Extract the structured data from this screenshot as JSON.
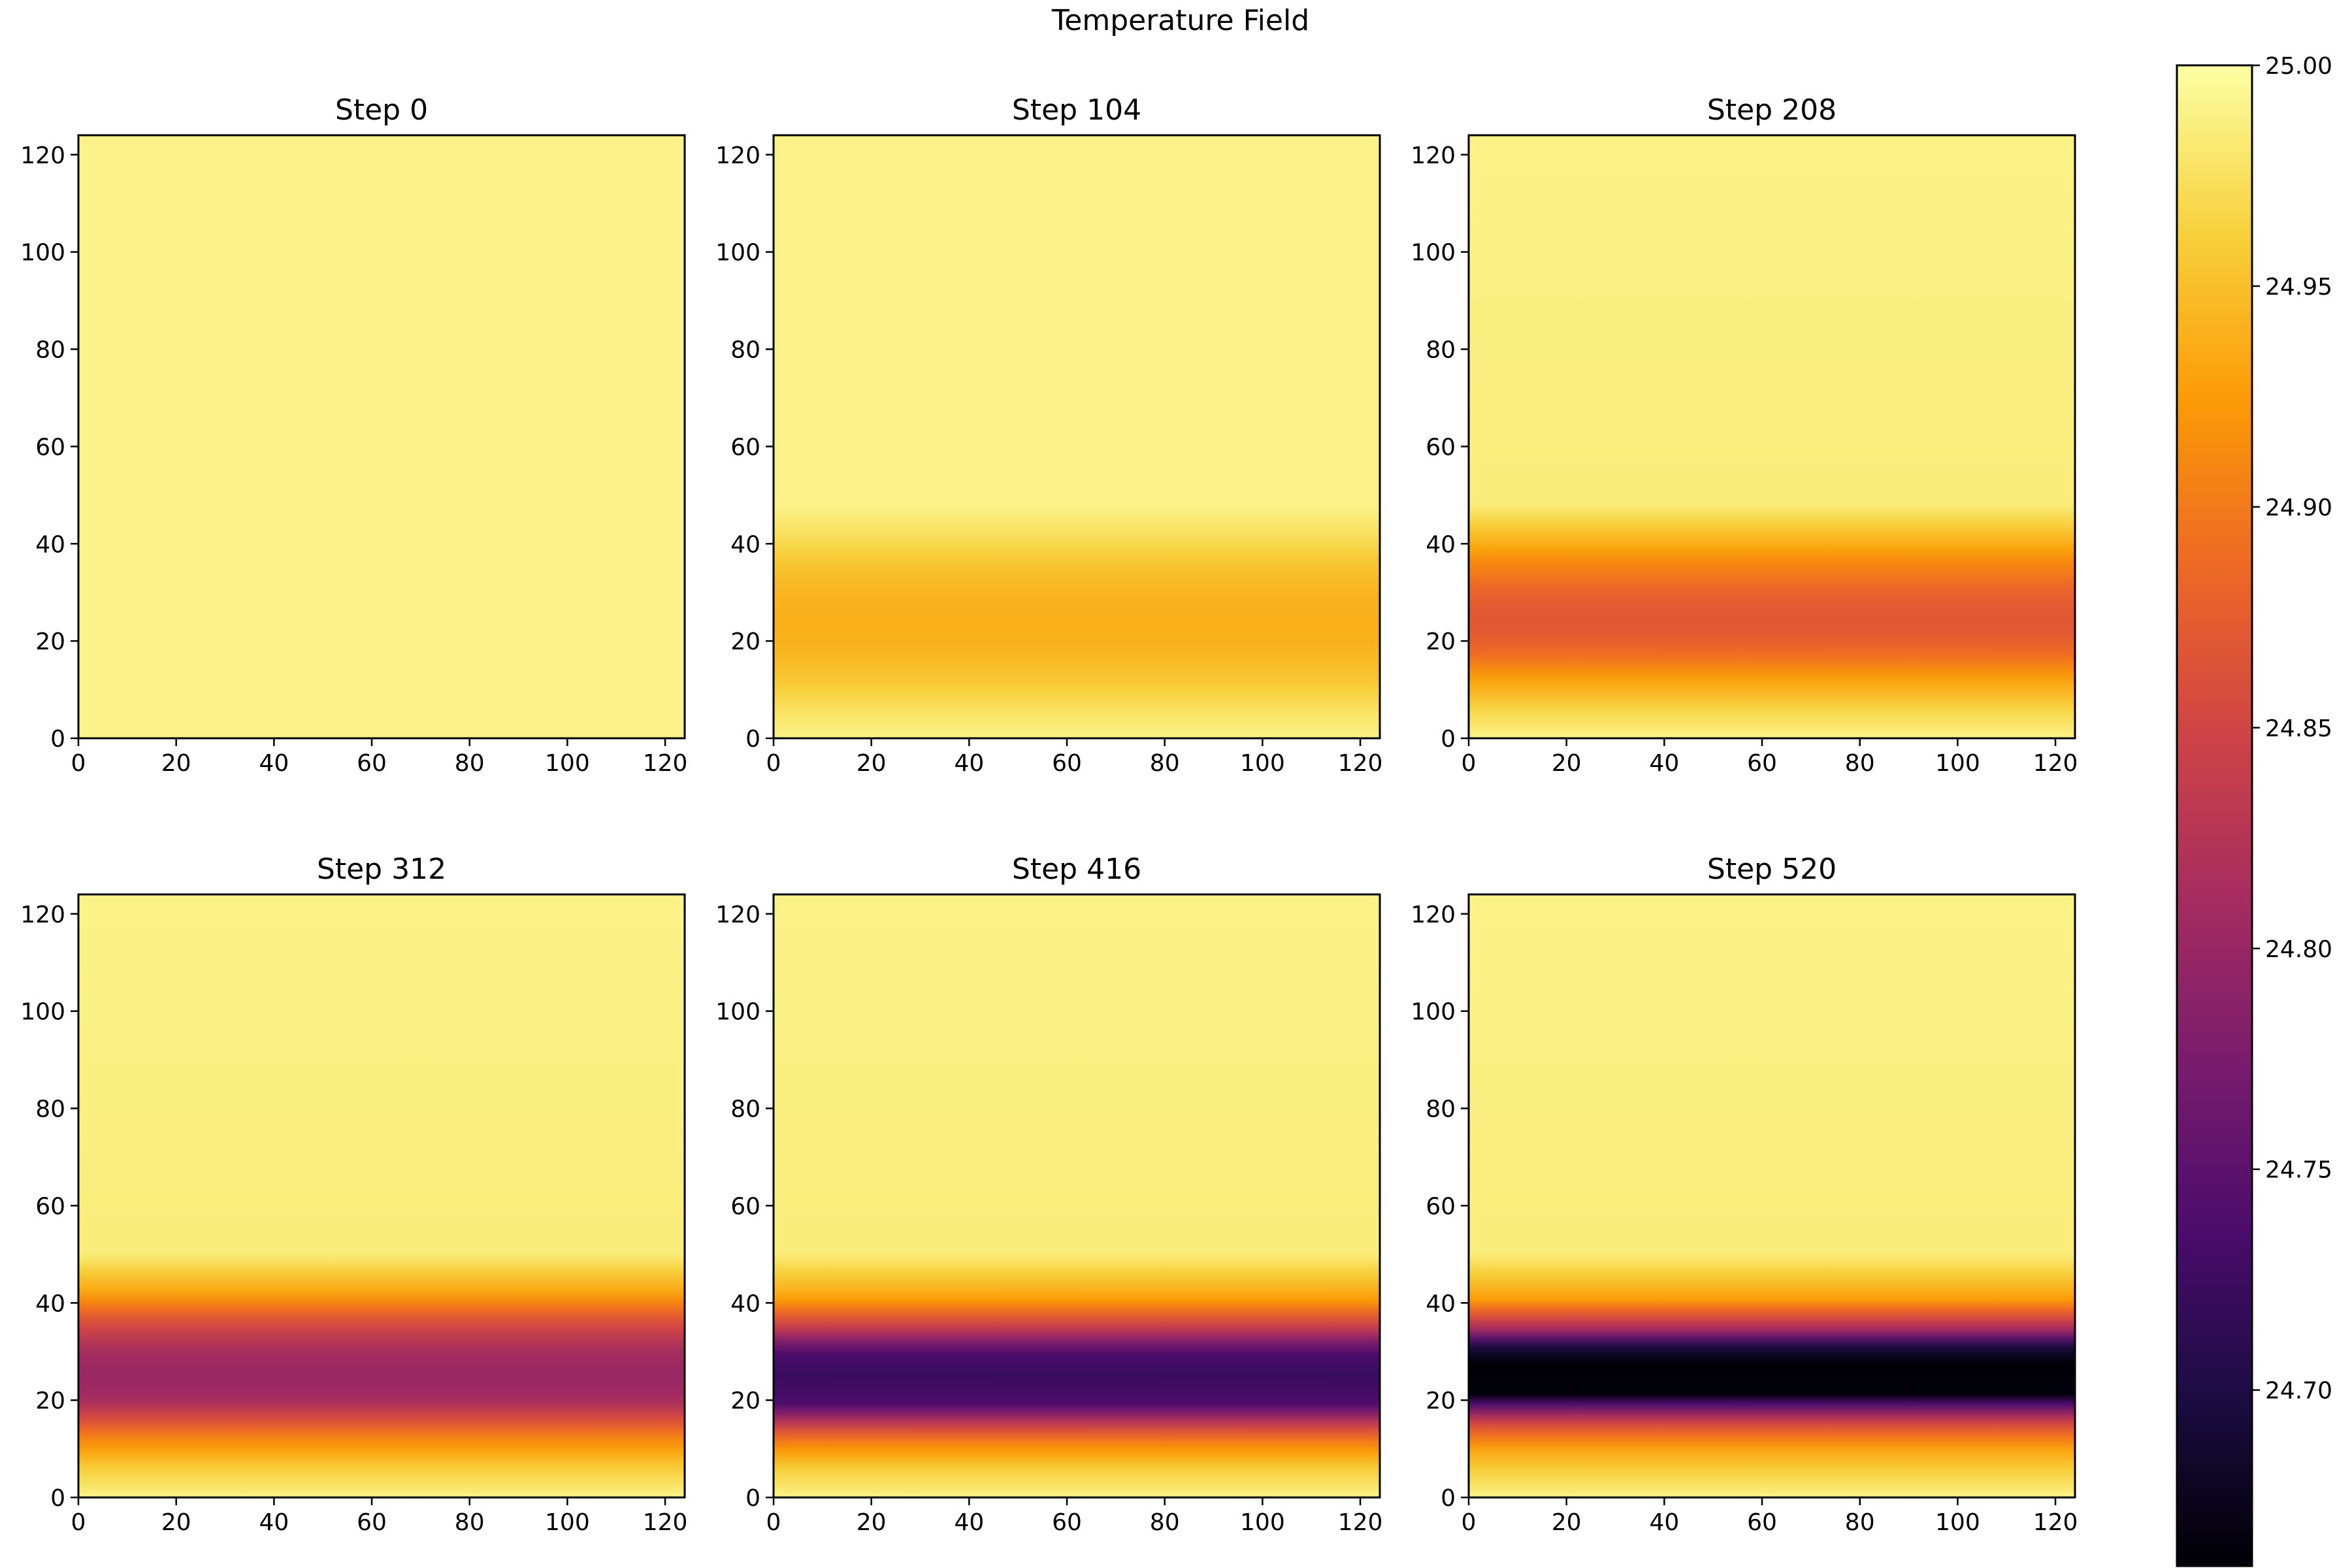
{
  "chart_data": {
    "type": "heatmap",
    "title": "Temperature Field",
    "grid": false,
    "colormap": "inferno",
    "colormap_stops": [
      "#000004",
      "#1b0c41",
      "#4a0c6b",
      "#781c6d",
      "#a52c60",
      "#cf4446",
      "#ed6925",
      "#fb9b06",
      "#f7d13d",
      "#fcffa4"
    ],
    "row_profile_note": "field varies only along y; values below are the temperature at each y (data units), constant across x",
    "colorbar": {
      "min": 24.66,
      "max": 25.0,
      "ticks": [
        24.7,
        24.75,
        24.8,
        24.85,
        24.9,
        24.95,
        25.0
      ],
      "tick_labels": [
        "24.70",
        "24.75",
        "24.80",
        "24.85",
        "24.90",
        "24.95",
        "25.00"
      ]
    },
    "panels": [
      {
        "title": "Step 0",
        "xlim": [
          0,
          124
        ],
        "ylim": [
          0,
          124
        ],
        "xticks": [
          0,
          20,
          40,
          60,
          80,
          100,
          120
        ],
        "yticks": [
          0,
          20,
          40,
          60,
          80,
          100,
          120
        ],
        "profile": {
          "y": [
            0,
            124
          ],
          "values": [
            24.99,
            24.99
          ]
        }
      },
      {
        "title": "Step 104",
        "xlim": [
          0,
          124
        ],
        "ylim": [
          0,
          124
        ],
        "xticks": [
          0,
          20,
          40,
          60,
          80,
          100,
          120
        ],
        "yticks": [
          0,
          20,
          40,
          60,
          80,
          100,
          120
        ],
        "profile": {
          "y": [
            0,
            6,
            12,
            18,
            24,
            30,
            36,
            42,
            48,
            124
          ],
          "values": [
            24.99,
            24.975,
            24.955,
            24.942,
            24.938,
            24.942,
            24.955,
            24.975,
            24.99,
            24.99
          ]
        }
      },
      {
        "title": "Step 208",
        "xlim": [
          0,
          124
        ],
        "ylim": [
          0,
          124
        ],
        "xticks": [
          0,
          20,
          40,
          60,
          80,
          100,
          120
        ],
        "yticks": [
          0,
          20,
          40,
          60,
          80,
          100,
          120
        ],
        "profile": {
          "y": [
            0,
            6,
            12,
            17,
            22,
            26,
            30,
            36,
            42,
            48,
            124
          ],
          "values": [
            24.99,
            24.965,
            24.93,
            24.89,
            24.87,
            24.87,
            24.88,
            24.91,
            24.95,
            24.985,
            24.99
          ]
        }
      },
      {
        "title": "Step 312",
        "xlim": [
          0,
          124
        ],
        "ylim": [
          0,
          124
        ],
        "xticks": [
          0,
          20,
          40,
          60,
          80,
          100,
          120
        ],
        "yticks": [
          0,
          20,
          40,
          60,
          80,
          100,
          120
        ],
        "profile": {
          "y": [
            0,
            6,
            12,
            16,
            20,
            25,
            30,
            36,
            42,
            50,
            124
          ],
          "values": [
            24.99,
            24.96,
            24.91,
            24.86,
            24.81,
            24.8,
            24.81,
            24.86,
            24.93,
            24.985,
            24.99
          ]
        }
      },
      {
        "title": "Step 416",
        "xlim": [
          0,
          124
        ],
        "ylim": [
          0,
          124
        ],
        "xticks": [
          0,
          20,
          40,
          60,
          80,
          100,
          120
        ],
        "yticks": [
          0,
          20,
          40,
          60,
          80,
          100,
          120
        ],
        "profile": {
          "y": [
            0,
            6,
            11,
            15,
            19,
            25,
            30,
            35,
            41,
            50,
            124
          ],
          "values": [
            24.99,
            24.96,
            24.91,
            24.84,
            24.74,
            24.72,
            24.74,
            24.84,
            24.93,
            24.985,
            24.99
          ]
        }
      },
      {
        "title": "Step 520",
        "xlim": [
          0,
          124
        ],
        "ylim": [
          0,
          124
        ],
        "xticks": [
          0,
          20,
          40,
          60,
          80,
          100,
          120
        ],
        "yticks": [
          0,
          20,
          40,
          60,
          80,
          100,
          120
        ],
        "profile": {
          "y": [
            0,
            5,
            10,
            15,
            19,
            21,
            28,
            31,
            35,
            41,
            50,
            124
          ],
          "values": [
            24.99,
            24.965,
            24.93,
            24.86,
            24.75,
            24.665,
            24.66,
            24.7,
            24.82,
            24.93,
            24.985,
            24.99
          ]
        }
      }
    ]
  }
}
